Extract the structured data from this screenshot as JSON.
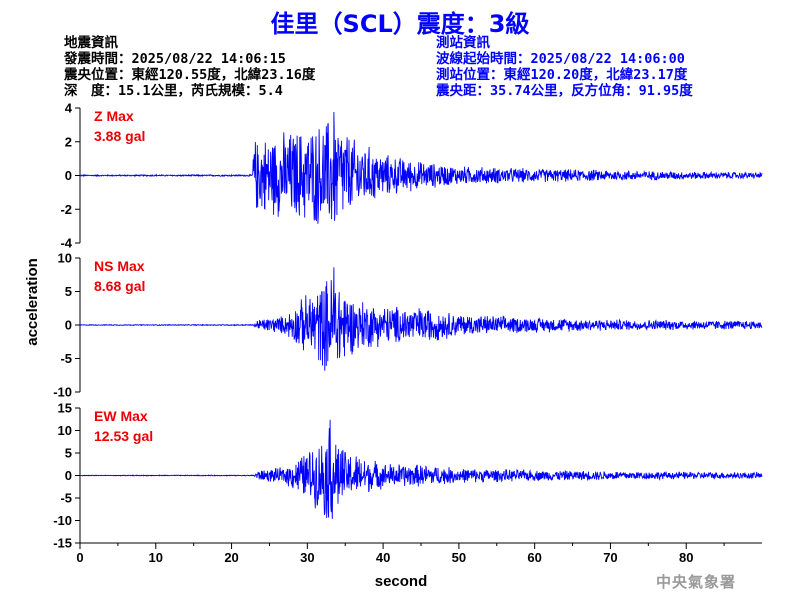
{
  "header": {
    "title": "佳里（SCL）震度：3級"
  },
  "quake_info": {
    "heading": "地震資訊",
    "origin_time": "發震時間：2025/08/22 14:06:15",
    "epicenter": "震央位置：東經120.55度，北緯23.16度",
    "depth_magnitude": "深　度：15.1公里，芮氏規模：5.4"
  },
  "station_info": {
    "heading": "測站資訊",
    "wave_start": "波線起始時間：2025/08/22 14:06:00",
    "station_location": "測站位置：東經120.20度，北緯23.17度",
    "distance_azimuth": "震央距：35.74公里，反方位角：91.95度"
  },
  "watermark": "中央氣象署",
  "colors": {
    "trace": "#0000ff",
    "max_label": "#ee0000",
    "title": "#0000ff"
  },
  "chart_data": {
    "type": "line",
    "xlabel": "second",
    "ylabel": "acceleration",
    "xlim": [
      0,
      90
    ],
    "x_ticks": [
      0,
      10,
      20,
      30,
      40,
      50,
      60,
      70,
      80
    ],
    "grid": false,
    "panels": [
      {
        "component": "Z",
        "label": "Z Max",
        "max_text": "3.88 gal",
        "max_value": 3.88,
        "ylim": [
          -4,
          4
        ],
        "y_ticks": [
          4,
          2,
          0,
          -2,
          -4
        ],
        "onset_s": 22.8,
        "envelope": [
          {
            "t": 0,
            "amp": 0.04
          },
          {
            "t": 22.7,
            "amp": 0.05
          },
          {
            "t": 22.9,
            "amp": 2.3
          },
          {
            "t": 25,
            "amp": 2.6
          },
          {
            "t": 28,
            "amp": 2.9
          },
          {
            "t": 31,
            "amp": 3.2
          },
          {
            "t": 33.5,
            "amp": 3.88
          },
          {
            "t": 36,
            "amp": 2.4
          },
          {
            "t": 40,
            "amp": 1.4
          },
          {
            "t": 45,
            "amp": 0.9
          },
          {
            "t": 50,
            "amp": 0.6
          },
          {
            "t": 60,
            "amp": 0.45
          },
          {
            "t": 70,
            "amp": 0.35
          },
          {
            "t": 80,
            "amp": 0.25
          },
          {
            "t": 90,
            "amp": 0.2
          }
        ]
      },
      {
        "component": "NS",
        "label": "NS Max",
        "max_text": "8.68 gal",
        "max_value": 8.68,
        "ylim": [
          -10,
          10
        ],
        "y_ticks": [
          10,
          5,
          0,
          -5,
          -10
        ],
        "onset_s": 23.0,
        "envelope": [
          {
            "t": 0,
            "amp": 0.06
          },
          {
            "t": 22.9,
            "amp": 0.08
          },
          {
            "t": 23.3,
            "amp": 0.9
          },
          {
            "t": 27,
            "amp": 1.5
          },
          {
            "t": 29.5,
            "amp": 4.5
          },
          {
            "t": 32,
            "amp": 7.0
          },
          {
            "t": 33.5,
            "amp": 8.68
          },
          {
            "t": 36,
            "amp": 4.5
          },
          {
            "t": 40,
            "amp": 3.2
          },
          {
            "t": 46,
            "amp": 2.8
          },
          {
            "t": 50,
            "amp": 1.8
          },
          {
            "t": 60,
            "amp": 1.2
          },
          {
            "t": 70,
            "amp": 0.9
          },
          {
            "t": 80,
            "amp": 0.8
          },
          {
            "t": 90,
            "amp": 0.7
          }
        ]
      },
      {
        "component": "EW",
        "label": "EW Max",
        "max_text": "12.53 gal",
        "max_value": 12.53,
        "ylim": [
          -15,
          15
        ],
        "y_ticks": [
          15,
          10,
          5,
          0,
          -5,
          -10,
          -15
        ],
        "onset_s": 23.0,
        "envelope": [
          {
            "t": 0,
            "amp": 0.08
          },
          {
            "t": 22.9,
            "amp": 0.1
          },
          {
            "t": 23.3,
            "amp": 1.2
          },
          {
            "t": 27,
            "amp": 2.0
          },
          {
            "t": 30,
            "amp": 6.0
          },
          {
            "t": 31.5,
            "amp": 8.0
          },
          {
            "t": 33,
            "amp": 12.53
          },
          {
            "t": 35,
            "amp": 6.0
          },
          {
            "t": 40,
            "amp": 3.0
          },
          {
            "t": 46,
            "amp": 2.6
          },
          {
            "t": 50,
            "amp": 1.8
          },
          {
            "t": 60,
            "amp": 1.3
          },
          {
            "t": 70,
            "amp": 1.1
          },
          {
            "t": 80,
            "amp": 0.9
          },
          {
            "t": 90,
            "amp": 0.8
          }
        ]
      }
    ]
  }
}
